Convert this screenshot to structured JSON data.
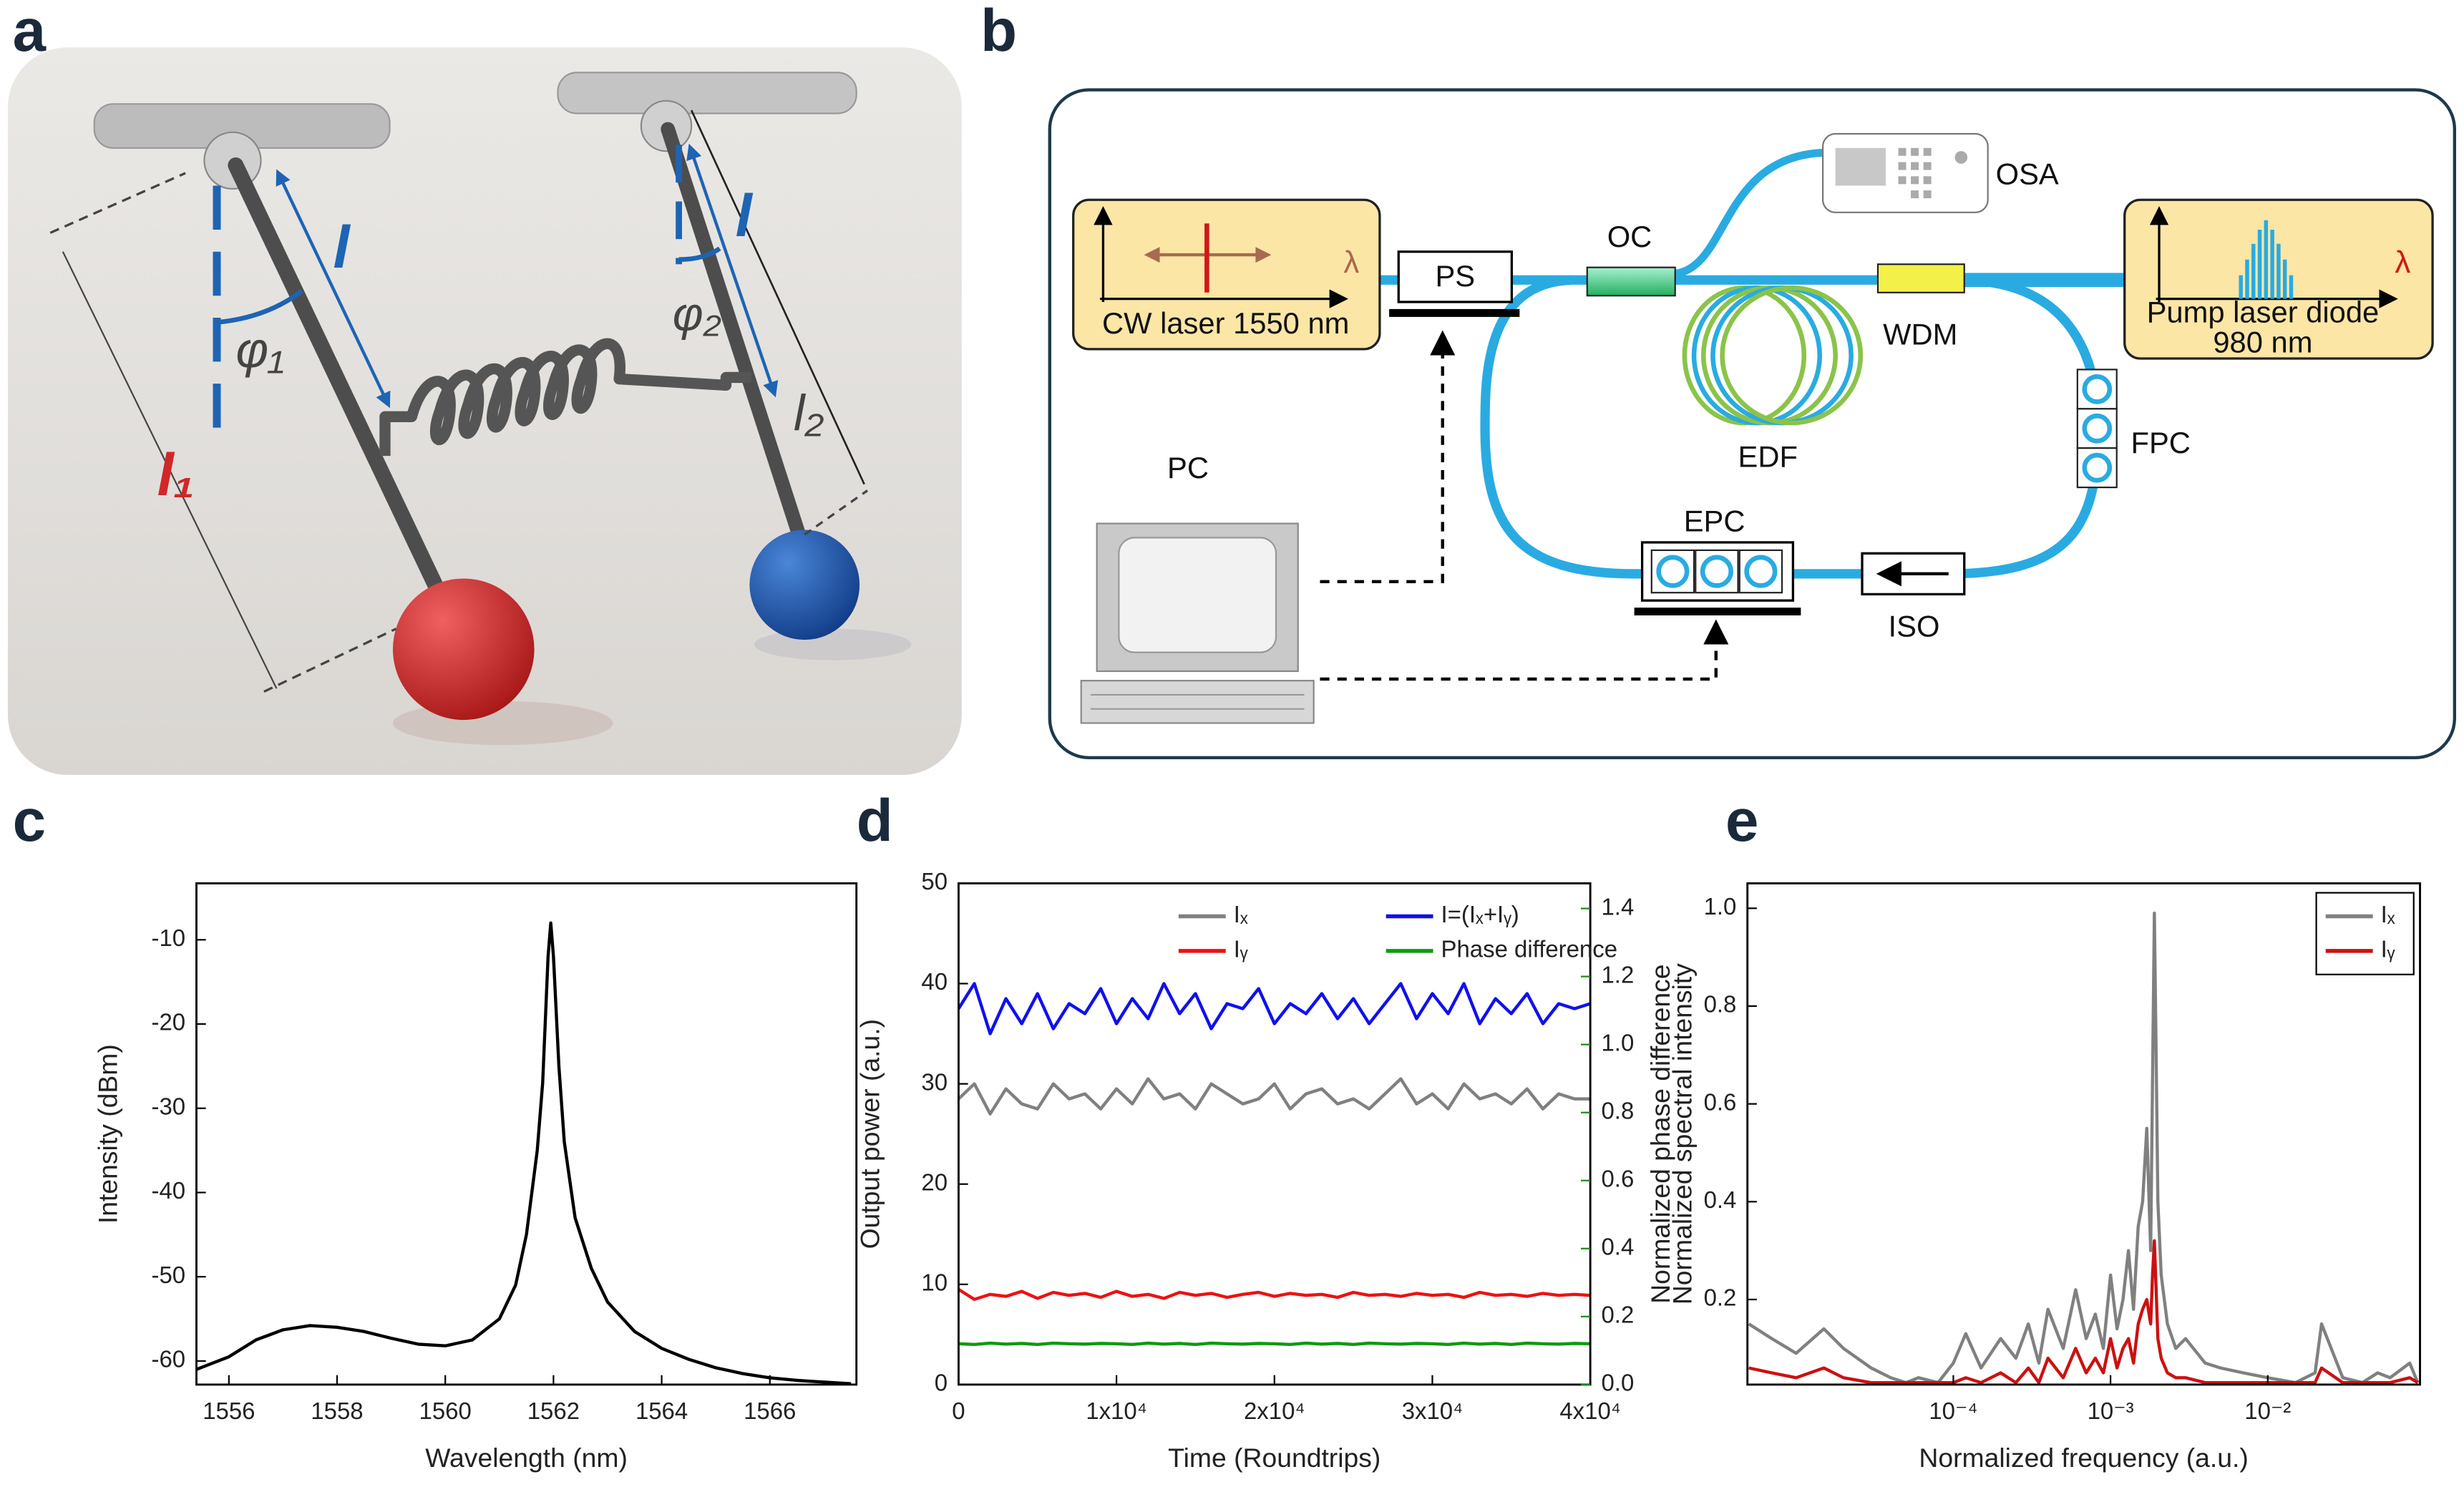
{
  "panels": {
    "a": "a",
    "b": "b",
    "c": "c",
    "d": "d",
    "e": "e"
  },
  "diagram_a": {
    "l_left": "l",
    "phi1": "φ₁",
    "phi2": "φ₂",
    "l_right": "l",
    "l1": "l₁",
    "l2": "l₂"
  },
  "diagram_b": {
    "osa": "OSA",
    "oc": "OC",
    "wdm": "WDM",
    "cw_laser": "CW laser 1550 nm",
    "cw_lambda": "λ",
    "pump_lambda": "λ",
    "ps": "PS",
    "pump_line1": "Pump laser diode",
    "pump_line2": "980 nm",
    "fpc": "FPC",
    "edf": "EDF",
    "pc": "PC",
    "epc": "EPC",
    "iso": "ISO"
  },
  "chart_data": [
    {
      "type": "line",
      "xlabel": "Wavelength (nm)",
      "ylabel": "Intensity (dBm)",
      "x": [
        1555.4,
        1556,
        1556.5,
        1557,
        1557.5,
        1558,
        1558.5,
        1559,
        1559.5,
        1560,
        1560.5,
        1561,
        1561.3,
        1561.5,
        1561.7,
        1561.8,
        1561.9,
        1561.95,
        1562,
        1562.1,
        1562.2,
        1562.4,
        1562.7,
        1563,
        1563.5,
        1564,
        1564.5,
        1565,
        1565.5,
        1566,
        1566.5,
        1567.5
      ],
      "series": [
        {
          "color": "#000000",
          "values": [
            -61,
            -59.5,
            -57.5,
            -56.3,
            -55.8,
            -56,
            -56.5,
            -57.3,
            -58,
            -58.2,
            -57.5,
            -55,
            -51,
            -45,
            -35,
            -27,
            -12,
            -8,
            -12,
            -25,
            -34,
            -43,
            -49,
            -53,
            -56.5,
            -58.5,
            -59.8,
            -60.8,
            -61.5,
            -62,
            -62.3,
            -62.7
          ]
        }
      ],
      "xlim": [
        1555.4,
        1567.6
      ],
      "xticks": [
        1556,
        1558,
        1560,
        1562,
        1564,
        1566
      ],
      "ylim": [
        -62.8,
        -3.3
      ],
      "yticks": [
        -60,
        -50,
        -40,
        -30,
        -20,
        -10
      ]
    },
    {
      "type": "line",
      "xlabel": "Time (Roundtrips)",
      "ylabel": "Output power (a.u.)",
      "y2label": "Normalized phase difference",
      "y2color": "#1a8a1a",
      "x": [
        0,
        1000,
        2000,
        3000,
        4000,
        5000,
        6000,
        7000,
        8000,
        9000,
        10000,
        11000,
        12000,
        13000,
        14000,
        15000,
        16000,
        17000,
        18000,
        19000,
        20000,
        21000,
        22000,
        23000,
        24000,
        25000,
        26000,
        27000,
        28000,
        29000,
        30000,
        31000,
        32000,
        33000,
        34000,
        35000,
        36000,
        37000,
        38000,
        39000,
        40000
      ],
      "series": [
        {
          "name": "Iₓ",
          "color": "#808080",
          "values": [
            28.5,
            30,
            27,
            29.5,
            28,
            27.5,
            30,
            28.5,
            29,
            27.5,
            29.5,
            28,
            30.5,
            28.5,
            29,
            27.5,
            30,
            29,
            28,
            28.5,
            30,
            27.5,
            29,
            29.5,
            28,
            28.5,
            27.5,
            29,
            30.5,
            28,
            29,
            27.5,
            30,
            28.5,
            29,
            28,
            29.5,
            27.5,
            29,
            28.5,
            28.5
          ]
        },
        {
          "name": "Iᵧ",
          "color": "#ee1111",
          "values": [
            9.5,
            8.5,
            9,
            8.8,
            9.3,
            8.6,
            9.2,
            8.9,
            9.1,
            8.7,
            9.3,
            8.8,
            9,
            8.6,
            9.2,
            8.9,
            9.1,
            8.7,
            9,
            9.2,
            8.8,
            9.1,
            8.9,
            9,
            8.7,
            9.2,
            8.9,
            9,
            8.8,
            9.1,
            8.9,
            9,
            8.7,
            9.2,
            8.9,
            9,
            8.8,
            9.1,
            8.9,
            9,
            8.9
          ]
        },
        {
          "name": "I=(Iₓ+Iᵧ)",
          "color": "#1010ee",
          "values": [
            37.5,
            40,
            35,
            38.5,
            36,
            39,
            35.5,
            38,
            37,
            39.5,
            36,
            38.5,
            36.5,
            40,
            37,
            39,
            35.5,
            38,
            37.5,
            39.5,
            36,
            38,
            37,
            39,
            36.5,
            38.5,
            36,
            38,
            40,
            36.5,
            39,
            37,
            40,
            36,
            38.5,
            37,
            39,
            36,
            38,
            37.5,
            38
          ]
        },
        {
          "name": "Phase difference",
          "color": "#119911",
          "axis": "y2",
          "values": [
            0.12,
            0.118,
            0.122,
            0.119,
            0.121,
            0.118,
            0.122,
            0.12,
            0.119,
            0.121,
            0.12,
            0.118,
            0.122,
            0.119,
            0.121,
            0.118,
            0.122,
            0.12,
            0.119,
            0.121,
            0.12,
            0.118,
            0.122,
            0.119,
            0.121,
            0.118,
            0.122,
            0.12,
            0.119,
            0.121,
            0.12,
            0.118,
            0.122,
            0.119,
            0.121,
            0.118,
            0.122,
            0.12,
            0.119,
            0.121,
            0.12
          ]
        }
      ],
      "xlim": [
        0,
        40000
      ],
      "xticks": [
        0,
        {
          "value": 10000,
          "label": "1x10⁴"
        },
        {
          "value": 20000,
          "label": "2x10⁴"
        },
        {
          "value": 30000,
          "label": "3x10⁴"
        },
        {
          "value": 40000,
          "label": "4x10⁴"
        }
      ],
      "ylim": [
        0,
        50
      ],
      "yticks": [
        0,
        10,
        20,
        30,
        40,
        50
      ],
      "y2lim": [
        0,
        1.474
      ],
      "y2ticks": [
        {
          "value": 0,
          "label": "0.0"
        },
        0.2,
        0.4,
        0.6,
        0.8,
        {
          "value": 1,
          "label": "1.0"
        },
        1.2,
        1.4
      ],
      "legend": "upper right",
      "legend_columns": 2
    },
    {
      "type": "line",
      "xlabel": "Normalized frequency (a.u.)",
      "ylabel": "Normalized spectral intensity",
      "xlog": true,
      "x": [
        5e-06,
        7e-06,
        1e-05,
        1.5e-05,
        2e-05,
        3e-05,
        4e-05,
        5e-05,
        6e-05,
        8e-05,
        0.0001,
        0.00012,
        0.00015,
        0.0002,
        0.00025,
        0.0003,
        0.00035,
        0.0004,
        0.0005,
        0.0006,
        0.0007,
        0.0008,
        0.0009,
        0.001,
        0.0011,
        0.0012,
        0.0013,
        0.0014,
        0.0015,
        0.0016,
        0.0017,
        0.0018,
        0.00185,
        0.0019,
        0.00195,
        0.002,
        0.0021,
        0.0023,
        0.0026,
        0.003,
        0.004,
        0.005,
        0.007,
        0.01,
        0.015,
        0.02,
        0.022,
        0.03,
        0.04,
        0.05,
        0.06,
        0.08,
        0.09
      ],
      "series": [
        {
          "name": "Iₓ",
          "color": "#808080",
          "values": [
            0.15,
            0.12,
            0.09,
            0.14,
            0.1,
            0.06,
            0.04,
            0.03,
            0.04,
            0.03,
            0.07,
            0.13,
            0.06,
            0.12,
            0.08,
            0.15,
            0.07,
            0.18,
            0.1,
            0.22,
            0.12,
            0.17,
            0.1,
            0.25,
            0.14,
            0.2,
            0.3,
            0.18,
            0.35,
            0.4,
            0.55,
            0.3,
            0.65,
            0.99,
            0.7,
            0.4,
            0.25,
            0.15,
            0.1,
            0.12,
            0.07,
            0.06,
            0.05,
            0.04,
            0.03,
            0.05,
            0.15,
            0.04,
            0.03,
            0.05,
            0.04,
            0.07,
            0.03
          ]
        },
        {
          "name": "Iᵧ",
          "color": "#cc1111",
          "values": [
            0.06,
            0.05,
            0.04,
            0.06,
            0.04,
            0.03,
            0.03,
            0.03,
            0.03,
            0.03,
            0.03,
            0.04,
            0.03,
            0.05,
            0.03,
            0.06,
            0.03,
            0.08,
            0.04,
            0.1,
            0.05,
            0.08,
            0.05,
            0.12,
            0.06,
            0.1,
            0.12,
            0.07,
            0.15,
            0.18,
            0.2,
            0.15,
            0.25,
            0.32,
            0.22,
            0.12,
            0.08,
            0.05,
            0.04,
            0.04,
            0.03,
            0.03,
            0.03,
            0.03,
            0.03,
            0.03,
            0.06,
            0.03,
            0.03,
            0.03,
            0.03,
            0.04,
            0.03
          ]
        }
      ],
      "xlim": [
        4.9e-06,
        0.093
      ],
      "xticks": [
        {
          "value": 0.0001,
          "label": "10⁻⁴"
        },
        {
          "value": 0.001,
          "label": "10⁻³"
        },
        {
          "value": 0.01,
          "label": "10⁻²"
        }
      ],
      "ylim": [
        0.026,
        1.051
      ],
      "yticks": [
        0.2,
        0.4,
        0.6,
        0.8,
        {
          "value": 1,
          "label": "1.0"
        }
      ],
      "legend": "upper right",
      "legend_frame": true
    }
  ]
}
